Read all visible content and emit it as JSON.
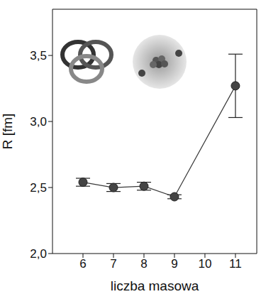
{
  "chart_data": {
    "type": "line",
    "x_label": "liczba masowa",
    "y_label": "R [fm]",
    "x": [
      6,
      7,
      8,
      9,
      11
    ],
    "values": [
      2.54,
      2.5,
      2.51,
      2.43,
      3.27
    ],
    "errors": [
      0.03,
      0.03,
      0.03,
      0.015,
      0.24
    ],
    "xlim": [
      5,
      11.7
    ],
    "xticks": [
      6,
      7,
      8,
      9,
      10,
      11
    ],
    "ylim": [
      2,
      3.85
    ],
    "yticks": [
      {
        "value": 2,
        "label": "2,0"
      },
      {
        "value": 2.5,
        "label": "2,5"
      },
      {
        "value": 3,
        "label": "3,0"
      },
      {
        "value": 3.5,
        "label": "3,5"
      }
    ],
    "color": "#3a3a3a",
    "marker": "circle",
    "line_style": "solid",
    "grid": false
  }
}
